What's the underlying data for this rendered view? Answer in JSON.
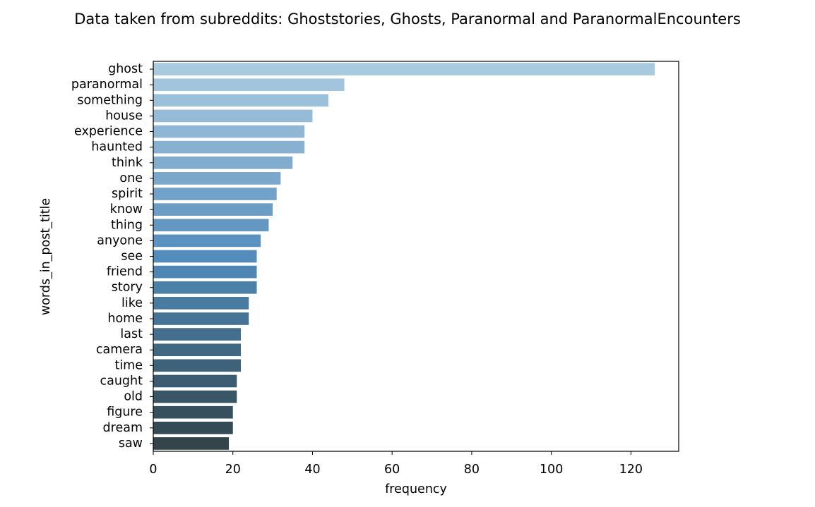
{
  "chart_data": {
    "type": "bar",
    "orientation": "horizontal",
    "title": "Data taken from subreddits: Ghoststories, Ghosts, Paranormal and ParanormalEncounters",
    "xlabel": "frequency",
    "ylabel": "words_in_post_title",
    "categories": [
      "ghost",
      "paranormal",
      "something",
      "house",
      "experience",
      "haunted",
      "think",
      "one",
      "spirit",
      "know",
      "thing",
      "anyone",
      "see",
      "friend",
      "story",
      "like",
      "home",
      "last",
      "camera",
      "time",
      "caught",
      "old",
      "figure",
      "dream",
      "saw"
    ],
    "values": [
      126,
      48,
      44,
      40,
      38,
      38,
      35,
      32,
      31,
      30,
      29,
      27,
      26,
      26,
      26,
      24,
      24,
      22,
      22,
      22,
      21,
      21,
      20,
      20,
      19
    ],
    "xlim": [
      0,
      132
    ],
    "xticks": [
      "0",
      "20",
      "40",
      "60",
      "80",
      "100",
      "120"
    ],
    "grid": false,
    "legend": "none",
    "colors": [
      "#a8cadf",
      "#a2c5dd",
      "#9cc0da",
      "#95bbd7",
      "#8fb6d4",
      "#88b1d1",
      "#82acce",
      "#7ba7cb",
      "#73a2c8",
      "#6c9dc5",
      "#6497c2",
      "#5c92bf",
      "#548cbb",
      "#4e86b3",
      "#4b80a9",
      "#497aa0",
      "#467496",
      "#436e8d",
      "#416883",
      "#3e627a",
      "#3b5c70",
      "#395667",
      "#37505d",
      "#344a54",
      "#32444a"
    ]
  }
}
